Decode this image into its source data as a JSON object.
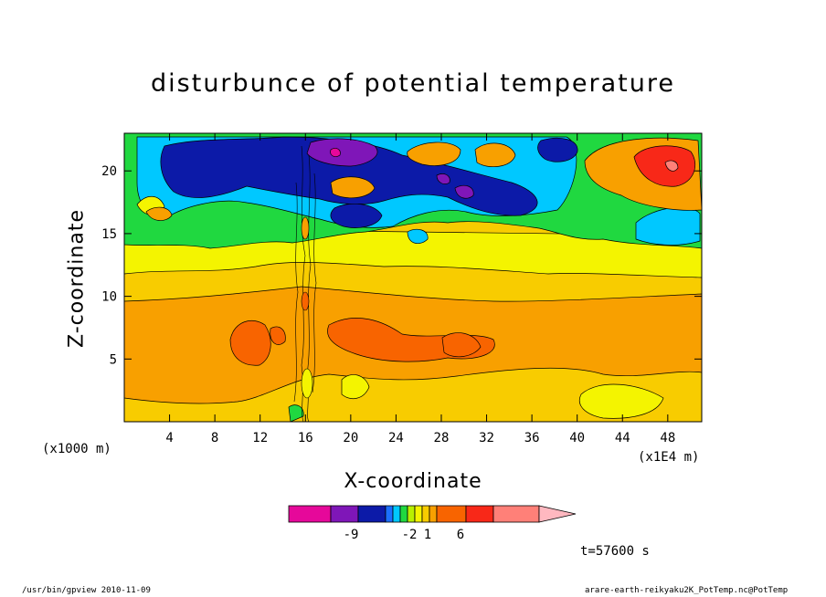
{
  "chart_data": {
    "type": "heatmap",
    "title": "disturbunce of potential temperature",
    "xlabel": "X-coordinate",
    "ylabel": "Z-coordinate",
    "x_unit_left": "(x1000 m)",
    "x_unit_right": "(x1E4 m)",
    "xlim": [
      0,
      51
    ],
    "ylim": [
      0,
      23
    ],
    "x_ticks": [
      4,
      8,
      12,
      16,
      20,
      24,
      28,
      32,
      36,
      40,
      44,
      48
    ],
    "y_ticks": [
      5,
      10,
      15,
      20
    ],
    "colorbar_labels": [
      {
        "label": "-9",
        "level": -9
      },
      {
        "label": "-2",
        "level": -2
      },
      {
        "label": "1",
        "level": 1
      },
      {
        "label": "6",
        "level": 6
      }
    ],
    "colorbar_colors": [
      "#e6089a",
      "#7f16b8",
      "#0c1aa8",
      "#1b6fff",
      "#00c8ff",
      "#20d840",
      "#b8f000",
      "#f4f400",
      "#f8cc00",
      "#f8a000",
      "#f86400",
      "#f82818",
      "#ff8078",
      "#ffb8c0"
    ],
    "grid": false,
    "time_label": "t=57600 s",
    "footer_left": "/usr/bin/gpview   2010-11-09",
    "footer_right": "arare-earth-reikyaku2K_PotTemp.nc@PotTemp"
  }
}
